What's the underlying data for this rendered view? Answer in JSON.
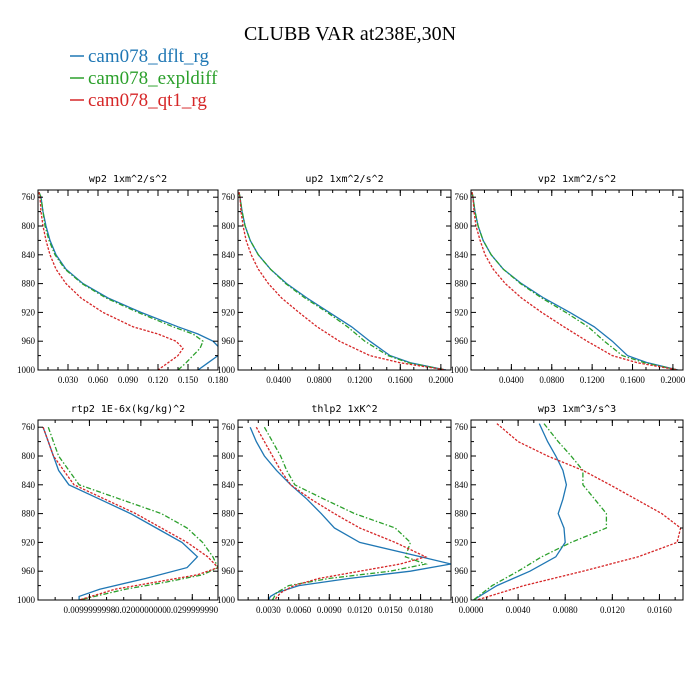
{
  "title": "CLUBB VAR at238E,30N",
  "legend": [
    {
      "name": "cam078_dflt_rg",
      "color": "#1f77b4"
    },
    {
      "name": "cam078_expldiff",
      "color": "#2ca02c"
    },
    {
      "name": "cam078_qt1_rg",
      "color": "#d62728"
    }
  ],
  "chart_data": [
    {
      "type": "line",
      "title": "wp2  1xm^2/s^2",
      "xlim": [
        0,
        0.18
      ],
      "ylim": [
        1000,
        750
      ],
      "y_ticks": [
        "760",
        "800",
        "840",
        "880",
        "920",
        "960",
        "1000"
      ],
      "x_ticks": [
        {
          "v": 0.03,
          "t": "0.030"
        },
        {
          "v": 0.06,
          "t": "0.060"
        },
        {
          "v": 0.09,
          "t": "0.090"
        },
        {
          "v": 0.12,
          "t": "0.120"
        },
        {
          "v": 0.15,
          "t": "0.150"
        },
        {
          "v": 0.18,
          "t": "0.180"
        }
      ],
      "series": [
        {
          "name": "cam078_dflt_rg",
          "y": [
            753,
            760,
            780,
            800,
            820,
            840,
            860,
            880,
            900,
            920,
            940,
            950,
            960,
            970,
            980,
            990,
            1000
          ],
          "values": [
            0.001,
            0.003,
            0.005,
            0.008,
            0.012,
            0.018,
            0.028,
            0.045,
            0.07,
            0.103,
            0.14,
            0.16,
            0.175,
            0.182,
            0.18,
            0.17,
            0.16
          ]
        },
        {
          "name": "cam078_expldiff",
          "y": [
            753,
            760,
            780,
            800,
            820,
            840,
            860,
            880,
            900,
            920,
            940,
            950,
            960,
            970,
            980,
            990,
            1000
          ],
          "values": [
            0.001,
            0.003,
            0.005,
            0.007,
            0.011,
            0.017,
            0.027,
            0.044,
            0.068,
            0.1,
            0.135,
            0.155,
            0.165,
            0.162,
            0.155,
            0.148,
            0.14
          ]
        },
        {
          "name": "cam078_qt1_rg",
          "y": [
            753,
            760,
            780,
            800,
            820,
            840,
            860,
            880,
            900,
            920,
            940,
            950,
            960,
            970,
            980,
            990,
            1000
          ],
          "values": [
            0.001,
            0.002,
            0.003,
            0.005,
            0.008,
            0.012,
            0.018,
            0.028,
            0.043,
            0.065,
            0.095,
            0.12,
            0.138,
            0.145,
            0.14,
            0.13,
            0.12
          ]
        }
      ]
    },
    {
      "type": "line",
      "title": "up2  1xm^2/s^2",
      "xlim": [
        0,
        0.21
      ],
      "ylim": [
        1000,
        750
      ],
      "y_ticks": [
        "760",
        "800",
        "840",
        "880",
        "920",
        "960",
        "1000"
      ],
      "x_ticks": [
        {
          "v": 0.04,
          "t": "0.0400"
        },
        {
          "v": 0.08,
          "t": "0.0800"
        },
        {
          "v": 0.12,
          "t": "0.1200"
        },
        {
          "v": 0.16,
          "t": "0.1600"
        },
        {
          "v": 0.2,
          "t": "0.2000"
        }
      ],
      "series": [
        {
          "name": "cam078_dflt_rg",
          "y": [
            753,
            760,
            780,
            800,
            820,
            840,
            860,
            880,
            900,
            920,
            940,
            960,
            980,
            990,
            1000
          ],
          "values": [
            0.001,
            0.002,
            0.004,
            0.007,
            0.012,
            0.02,
            0.032,
            0.048,
            0.068,
            0.09,
            0.112,
            0.13,
            0.15,
            0.17,
            0.205
          ]
        },
        {
          "name": "cam078_expldiff",
          "y": [
            753,
            760,
            780,
            800,
            820,
            840,
            860,
            880,
            900,
            920,
            940,
            960,
            980,
            990,
            1000
          ],
          "values": [
            0.001,
            0.002,
            0.004,
            0.007,
            0.012,
            0.02,
            0.032,
            0.047,
            0.066,
            0.088,
            0.108,
            0.125,
            0.148,
            0.168,
            0.205
          ]
        },
        {
          "name": "cam078_qt1_rg",
          "y": [
            753,
            760,
            780,
            800,
            820,
            840,
            860,
            880,
            900,
            920,
            940,
            960,
            980,
            990,
            1000
          ],
          "values": [
            0.001,
            0.002,
            0.003,
            0.005,
            0.008,
            0.013,
            0.02,
            0.03,
            0.043,
            0.06,
            0.078,
            0.1,
            0.13,
            0.16,
            0.205
          ]
        }
      ]
    },
    {
      "type": "line",
      "title": "vp2  1xm^2/s^2",
      "xlim": [
        0,
        0.21
      ],
      "ylim": [
        1000,
        750
      ],
      "y_ticks": [
        "760",
        "800",
        "840",
        "880",
        "920",
        "960",
        "1000"
      ],
      "x_ticks": [
        {
          "v": 0.04,
          "t": "0.0400"
        },
        {
          "v": 0.08,
          "t": "0.0800"
        },
        {
          "v": 0.12,
          "t": "0.1200"
        },
        {
          "v": 0.16,
          "t": "0.1600"
        },
        {
          "v": 0.2,
          "t": "0.2000"
        }
      ],
      "series": [
        {
          "name": "cam078_dflt_rg",
          "y": [
            753,
            760,
            780,
            800,
            820,
            840,
            860,
            880,
            900,
            920,
            940,
            960,
            980,
            990,
            1000
          ],
          "values": [
            0.001,
            0.002,
            0.004,
            0.007,
            0.012,
            0.02,
            0.032,
            0.05,
            0.072,
            0.098,
            0.122,
            0.14,
            0.155,
            0.175,
            0.205
          ]
        },
        {
          "name": "cam078_expldiff",
          "y": [
            753,
            760,
            780,
            800,
            820,
            840,
            860,
            880,
            900,
            920,
            940,
            960,
            980,
            990,
            1000
          ],
          "values": [
            0.001,
            0.002,
            0.004,
            0.007,
            0.012,
            0.02,
            0.032,
            0.049,
            0.07,
            0.094,
            0.116,
            0.132,
            0.15,
            0.172,
            0.205
          ]
        },
        {
          "name": "cam078_qt1_rg",
          "y": [
            753,
            760,
            780,
            800,
            820,
            840,
            860,
            880,
            900,
            920,
            940,
            960,
            980,
            990,
            1000
          ],
          "values": [
            0.001,
            0.002,
            0.003,
            0.005,
            0.009,
            0.014,
            0.022,
            0.034,
            0.05,
            0.07,
            0.092,
            0.115,
            0.14,
            0.165,
            0.205
          ]
        }
      ]
    },
    {
      "type": "line",
      "title": "rtp2  1E-6x(kg/kg)^2",
      "xlim": [
        0,
        0.035
      ],
      "ylim": [
        1000,
        750
      ],
      "y_ticks": [
        "760",
        "800",
        "840",
        "880",
        "920",
        "960",
        "1000"
      ],
      "x_ticks": [
        {
          "v": 0.01,
          "t": "0.0099999998"
        },
        {
          "v": 0.02,
          "t": "0.0200000000"
        },
        {
          "v": 0.03,
          "t": "0.0299999990"
        }
      ],
      "series": [
        {
          "name": "cam078_dflt_rg",
          "y": [
            760,
            780,
            800,
            820,
            840,
            860,
            880,
            900,
            920,
            940,
            955,
            970,
            985,
            995,
            1000
          ],
          "values": [
            0.001,
            0.002,
            0.003,
            0.004,
            0.006,
            0.012,
            0.018,
            0.023,
            0.028,
            0.031,
            0.029,
            0.021,
            0.012,
            0.008,
            0.008
          ]
        },
        {
          "name": "cam078_expldiff",
          "y": [
            760,
            780,
            800,
            820,
            840,
            860,
            880,
            900,
            920,
            940,
            955,
            965,
            975,
            985,
            1000
          ],
          "values": [
            0.002,
            0.003,
            0.004,
            0.006,
            0.008,
            0.016,
            0.024,
            0.029,
            0.032,
            0.034,
            0.035,
            0.032,
            0.025,
            0.017,
            0.008
          ]
        },
        {
          "name": "cam078_qt1_rg",
          "y": [
            760,
            780,
            800,
            820,
            840,
            860,
            880,
            900,
            920,
            940,
            955,
            965,
            975,
            985,
            1000
          ],
          "values": [
            0.001,
            0.002,
            0.003,
            0.005,
            0.007,
            0.013,
            0.019,
            0.024,
            0.029,
            0.033,
            0.035,
            0.031,
            0.023,
            0.015,
            0.008
          ]
        }
      ]
    },
    {
      "type": "line",
      "title": "thlp2  1xK^2",
      "xlim": [
        0,
        0.021
      ],
      "ylim": [
        1000,
        750
      ],
      "y_ticks": [
        "760",
        "800",
        "840",
        "880",
        "920",
        "960",
        "1000"
      ],
      "x_ticks": [
        {
          "v": 0.003,
          "t": "0.0030"
        },
        {
          "v": 0.006,
          "t": "0.0060"
        },
        {
          "v": 0.009,
          "t": "0.0090"
        },
        {
          "v": 0.012,
          "t": "0.0120"
        },
        {
          "v": 0.015,
          "t": "0.0150"
        },
        {
          "v": 0.018,
          "t": "0.0180"
        }
      ],
      "series": [
        {
          "name": "cam078_dflt_rg",
          "y": [
            760,
            780,
            800,
            820,
            840,
            860,
            880,
            900,
            920,
            940,
            950,
            960,
            970,
            980,
            990,
            995,
            1000
          ],
          "values": [
            0.0012,
            0.0018,
            0.0026,
            0.0038,
            0.0052,
            0.0068,
            0.0082,
            0.0095,
            0.012,
            0.018,
            0.021,
            0.017,
            0.011,
            0.006,
            0.0038,
            0.0032,
            0.003
          ]
        },
        {
          "name": "cam078_expldiff",
          "y": [
            760,
            780,
            800,
            820,
            840,
            860,
            880,
            900,
            920,
            940,
            950,
            960,
            970,
            980,
            990,
            1000
          ],
          "values": [
            0.0026,
            0.0034,
            0.0042,
            0.0048,
            0.0056,
            0.0085,
            0.0115,
            0.0155,
            0.017,
            0.0165,
            0.0185,
            0.015,
            0.009,
            0.005,
            0.0038,
            0.0034
          ]
        },
        {
          "name": "cam078_qt1_rg",
          "y": [
            760,
            780,
            800,
            820,
            840,
            860,
            880,
            900,
            920,
            940,
            950,
            960,
            970,
            980,
            990,
            1000
          ],
          "values": [
            0.0018,
            0.0026,
            0.0034,
            0.0042,
            0.0052,
            0.0072,
            0.0095,
            0.012,
            0.0155,
            0.0185,
            0.016,
            0.012,
            0.008,
            0.0055,
            0.0042,
            0.0036
          ]
        }
      ]
    },
    {
      "type": "line",
      "title": "wp3  1xm^3/s^3",
      "xlim": [
        0,
        0.018
      ],
      "ylim": [
        1000,
        750
      ],
      "y_ticks": [
        "760",
        "800",
        "840",
        "880",
        "920",
        "960",
        "1000"
      ],
      "x_ticks": [
        {
          "v": 0.0,
          "t": "0.0000"
        },
        {
          "v": 0.004,
          "t": "0.0040"
        },
        {
          "v": 0.008,
          "t": "0.0080"
        },
        {
          "v": 0.012,
          "t": "0.0120"
        },
        {
          "v": 0.016,
          "t": "0.0160"
        }
      ],
      "series": [
        {
          "name": "cam078_dflt_rg",
          "y": [
            755,
            780,
            800,
            820,
            840,
            860,
            880,
            900,
            920,
            940,
            960,
            980,
            1000
          ],
          "values": [
            0.0058,
            0.0065,
            0.0072,
            0.0078,
            0.0081,
            0.0078,
            0.0074,
            0.0079,
            0.008,
            0.0072,
            0.005,
            0.0022,
            0.0002
          ]
        },
        {
          "name": "cam078_expldiff",
          "y": [
            755,
            780,
            800,
            820,
            840,
            860,
            880,
            900,
            920,
            940,
            960,
            980,
            1000
          ],
          "values": [
            0.0062,
            0.0074,
            0.0085,
            0.0095,
            0.0095,
            0.0105,
            0.0115,
            0.0115,
            0.0085,
            0.006,
            0.004,
            0.0018,
            0.0002
          ]
        },
        {
          "name": "cam078_qt1_rg",
          "y": [
            755,
            780,
            800,
            820,
            840,
            860,
            880,
            900,
            920,
            940,
            960,
            980,
            1000
          ],
          "values": [
            0.0022,
            0.004,
            0.0065,
            0.0095,
            0.0118,
            0.014,
            0.0162,
            0.0178,
            0.0175,
            0.0142,
            0.0095,
            0.0045,
            0.0005
          ]
        }
      ]
    }
  ]
}
